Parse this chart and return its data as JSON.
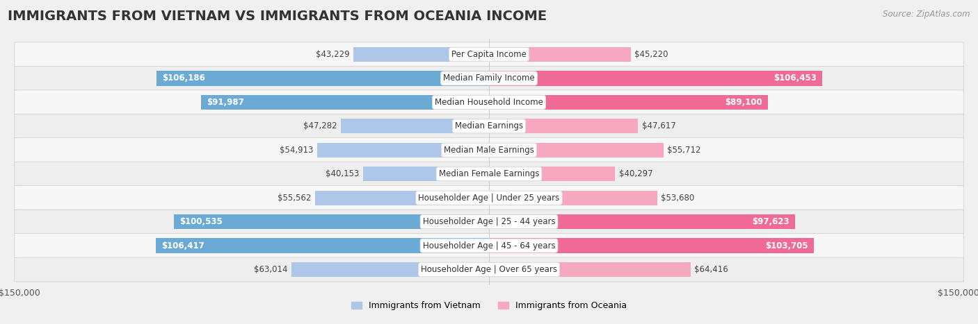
{
  "title": "IMMIGRANTS FROM VIETNAM VS IMMIGRANTS FROM OCEANIA INCOME",
  "source": "Source: ZipAtlas.com",
  "categories": [
    "Per Capita Income",
    "Median Family Income",
    "Median Household Income",
    "Median Earnings",
    "Median Male Earnings",
    "Median Female Earnings",
    "Householder Age | Under 25 years",
    "Householder Age | 25 - 44 years",
    "Householder Age | 45 - 64 years",
    "Householder Age | Over 65 years"
  ],
  "vietnam_values": [
    43229,
    106186,
    91987,
    47282,
    54913,
    40153,
    55562,
    100535,
    106417,
    63014
  ],
  "oceania_values": [
    45220,
    106453,
    89100,
    47617,
    55712,
    40297,
    53680,
    97623,
    103705,
    64416
  ],
  "vietnam_labels": [
    "$43,229",
    "$106,186",
    "$91,987",
    "$47,282",
    "$54,913",
    "$40,153",
    "$55,562",
    "$100,535",
    "$106,417",
    "$63,014"
  ],
  "oceania_labels": [
    "$45,220",
    "$106,453",
    "$89,100",
    "$47,617",
    "$55,712",
    "$40,297",
    "$53,680",
    "$97,623",
    "$103,705",
    "$64,416"
  ],
  "vietnam_color_light": "#aec6e8",
  "vietnam_color_dark": "#6aaad4",
  "oceania_color_light": "#f5a8c0",
  "oceania_color_dark": "#f06a96",
  "vietnam_label_threshold": 80000,
  "oceania_label_threshold": 80000,
  "max_value": 150000,
  "bar_height": 0.62,
  "row_colors": [
    "#f7f7f7",
    "#eeeeee"
  ],
  "row_border_color": "#cccccc",
  "background_color": "#f0f0f0",
  "title_fontsize": 14,
  "label_fontsize": 8.5,
  "category_fontsize": 8.5,
  "legend_fontsize": 9,
  "source_fontsize": 8.5
}
